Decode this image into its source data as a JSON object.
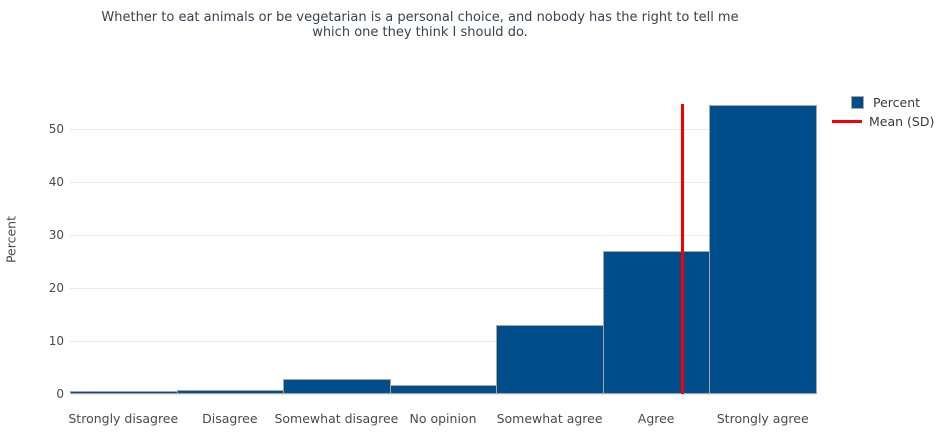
{
  "title": {
    "lines": [
      "Whether to eat animals or be vegetarian is a personal choice, and nobody has the right to tell me",
      "which one they think I should do."
    ]
  },
  "legend": {
    "items": [
      {
        "label": "Percent",
        "swatch": "square",
        "color": "#004d8c"
      },
      {
        "label": "Mean (SD)",
        "swatch": "line",
        "color": "#f40000"
      }
    ]
  },
  "chart_data": {
    "type": "bar",
    "title": "Whether to eat animals or be vegetarian is a personal choice, and nobody has the right to tell me which one they think I should do.",
    "categories": [
      "Strongly disagree",
      "Disagree",
      "Somewhat disagree",
      "No opinion",
      "Somewhat agree",
      "Agree",
      "Strongly agree"
    ],
    "values": [
      0.5,
      0.8,
      2.8,
      1.7,
      13,
      27,
      54.6
    ],
    "series_name": "Percent",
    "xlabel": "",
    "ylabel": "Percent",
    "yticks": [
      0,
      10,
      20,
      30,
      40,
      50
    ],
    "ylim": [
      0,
      58.4
    ],
    "grid": true,
    "legend_position": "right",
    "bar_color": "#004d8c",
    "bar_border_color": "#a6a6a6",
    "mean_line": {
      "label": "Mean (SD)",
      "color": "#f40000",
      "x_value": 6.25,
      "top_value": 54.8
    }
  }
}
